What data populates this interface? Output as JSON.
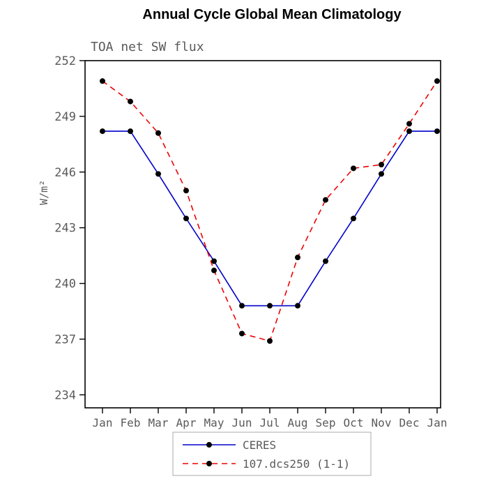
{
  "chart_data": {
    "type": "line",
    "title": "Annual Cycle Global Mean Climatology",
    "subtitle": "TOA net SW flux",
    "ylabel": "W/m²",
    "x_tick_labels": [
      "Jan",
      "Feb",
      "Mar",
      "Apr",
      "May",
      "Jun",
      "Jul",
      "Aug",
      "Sep",
      "Oct",
      "Nov",
      "Dec",
      "Jan"
    ],
    "yticks": [
      234,
      237,
      240,
      243,
      246,
      249,
      252
    ],
    "axis": {
      "y_range": [
        233.3,
        252.0
      ],
      "grid": false
    },
    "series": [
      {
        "name": "CERES",
        "color": "#0000cc",
        "style": "solid",
        "values": [
          248.2,
          248.2,
          245.9,
          243.5,
          241.2,
          238.8,
          238.8,
          238.8,
          241.2,
          243.5,
          245.9,
          248.2,
          248.2
        ]
      },
      {
        "name": "107.dcs250 (1-1)",
        "color": "#ee0000",
        "style": "dashed",
        "values": [
          250.9,
          249.8,
          248.1,
          245.0,
          240.7,
          237.3,
          236.9,
          241.4,
          244.5,
          246.2,
          246.4,
          248.6,
          250.9
        ]
      }
    ],
    "marker": {
      "shape": "circle",
      "color": "#000000"
    },
    "legend_position": "bottom",
    "colors": {
      "frame": "#000000",
      "label_gray": "#5a5a5a",
      "legend_border": "#aaaaaa",
      "title_color": "#000000"
    }
  }
}
